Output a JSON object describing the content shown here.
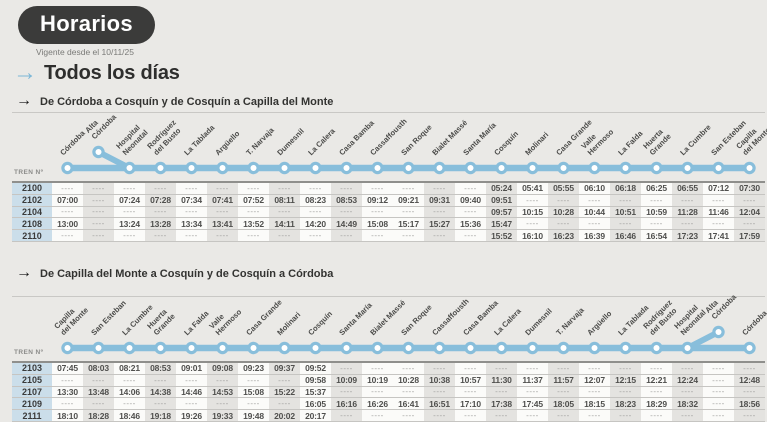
{
  "header": {
    "title": "Horarios",
    "subtitle": "Vigente desde el 10/11/25",
    "section_title": "Todos los días",
    "section_arrow": "→",
    "direction_arrow": "→"
  },
  "colors": {
    "route_blue": "#88bedb",
    "accent_arrow": "#7cb7d7",
    "pill_dark": "#3b3b3a",
    "train_cell_blue": "#cbdeea",
    "page_bg": "#eae9e6"
  },
  "tables": [
    {
      "direction": "De Córdoba a Cosquín y de Cosquín a Capilla del Monte",
      "train_label": "TREN Nº",
      "branch_index": 1,
      "branch_attach_index": 2,
      "stations": [
        "Córdoba",
        "Alta\nCórdoba",
        "Hospital\nNeonatal",
        "Rodríguez\ndel Busto",
        "La Tablada",
        "Argüello",
        "T. Narvaja",
        "Dumesnil",
        "La Calera",
        "Casa Bamba",
        "Cassaffousth",
        "San Roque",
        "Bialet Massé",
        "Santa María",
        "Cosquín",
        "Molinari",
        "Casa Grande",
        "Valle\nHermoso",
        "La Falda",
        "Huerta\nGrande",
        "La Cumbre",
        "San Esteban",
        "Capilla\ndel Monte"
      ],
      "rows": [
        {
          "train": "2100",
          "times": [
            "----",
            "----",
            "----",
            "----",
            "----",
            "----",
            "----",
            "----",
            "----",
            "----",
            "----",
            "----",
            "----",
            "----",
            "05:24",
            "05:41",
            "05:55",
            "06:10",
            "06:18",
            "06:25",
            "06:55",
            "07:12",
            "07:30"
          ]
        },
        {
          "train": "2102",
          "times": [
            "07:00",
            "----",
            "07:24",
            "07:28",
            "07:34",
            "07:41",
            "07:52",
            "08:11",
            "08:23",
            "08:53",
            "09:12",
            "09:21",
            "09:31",
            "09:40",
            "09:51",
            "----",
            "----",
            "----",
            "----",
            "----",
            "----",
            "----",
            "----"
          ]
        },
        {
          "train": "2104",
          "times": [
            "----",
            "----",
            "----",
            "----",
            "----",
            "----",
            "----",
            "----",
            "----",
            "----",
            "----",
            "----",
            "----",
            "----",
            "09:57",
            "10:15",
            "10:28",
            "10:44",
            "10:51",
            "10:59",
            "11:28",
            "11:46",
            "12:04"
          ]
        },
        {
          "train": "2108",
          "times": [
            "13:00",
            "----",
            "13:24",
            "13:28",
            "13:34",
            "13:41",
            "13:52",
            "14:11",
            "14:20",
            "14:49",
            "15:08",
            "15:17",
            "15:27",
            "15:36",
            "15:47",
            "----",
            "----",
            "----",
            "----",
            "----",
            "----",
            "----",
            "----"
          ]
        },
        {
          "train": "2110",
          "times": [
            "----",
            "----",
            "----",
            "----",
            "----",
            "----",
            "----",
            "----",
            "----",
            "----",
            "----",
            "----",
            "----",
            "----",
            "15:52",
            "16:10",
            "16:23",
            "16:39",
            "16:46",
            "16:54",
            "17:23",
            "17:41",
            "17:59"
          ]
        }
      ]
    },
    {
      "direction": "De Capilla del Monte a Cosquín y de Cosquín a Córdoba",
      "train_label": "TREN Nº",
      "branch_index": 21,
      "branch_attach_index": 20,
      "stations": [
        "Capilla\ndel Monte",
        "San Esteban",
        "La Cumbre",
        "Huerta\nGrande",
        "La Falda",
        "Valle\nHermoso",
        "Casa Grande",
        "Molinari",
        "Cosquín",
        "Santa María",
        "Bialet Massé",
        "San Roque",
        "Cassaffousth",
        "Casa Bamba",
        "La Calera",
        "Dumesnil",
        "T. Narvaja",
        "Argüello",
        "La Tablada",
        "Rodríguez\ndel Busto",
        "Hospital\nNeonatal",
        "Alta\nCórdoba",
        "Córdoba"
      ],
      "rows": [
        {
          "train": "2103",
          "times": [
            "07:45",
            "08:03",
            "08:21",
            "08:53",
            "09:01",
            "09:08",
            "09:23",
            "09:37",
            "09:52",
            "----",
            "----",
            "----",
            "----",
            "----",
            "----",
            "----",
            "----",
            "----",
            "----",
            "----",
            "----",
            "----",
            "----"
          ]
        },
        {
          "train": "2105",
          "times": [
            "----",
            "----",
            "----",
            "----",
            "----",
            "----",
            "----",
            "----",
            "09:58",
            "10:09",
            "10:19",
            "10:28",
            "10:38",
            "10:57",
            "11:30",
            "11:37",
            "11:57",
            "12:07",
            "12:15",
            "12:21",
            "12:24",
            "----",
            "12:48"
          ]
        },
        {
          "train": "2107",
          "times": [
            "13:30",
            "13:48",
            "14:06",
            "14:38",
            "14:46",
            "14:53",
            "15:08",
            "15:22",
            "15:37",
            "----",
            "----",
            "----",
            "----",
            "----",
            "----",
            "----",
            "----",
            "----",
            "----",
            "----",
            "----",
            "----",
            "----"
          ]
        },
        {
          "train": "2109",
          "times": [
            "----",
            "----",
            "----",
            "----",
            "----",
            "----",
            "----",
            "----",
            "16:05",
            "16:16",
            "16:26",
            "16:41",
            "16:51",
            "17:10",
            "17:38",
            "17:45",
            "18:05",
            "18:15",
            "18:23",
            "18:29",
            "18:32",
            "----",
            "18:56"
          ]
        },
        {
          "train": "2111",
          "times": [
            "18:10",
            "18:28",
            "18:46",
            "19:18",
            "19:26",
            "19:33",
            "19:48",
            "20:02",
            "20:17",
            "----",
            "----",
            "----",
            "----",
            "----",
            "----",
            "----",
            "----",
            "----",
            "----",
            "----",
            "----",
            "----",
            "----"
          ]
        }
      ]
    }
  ]
}
